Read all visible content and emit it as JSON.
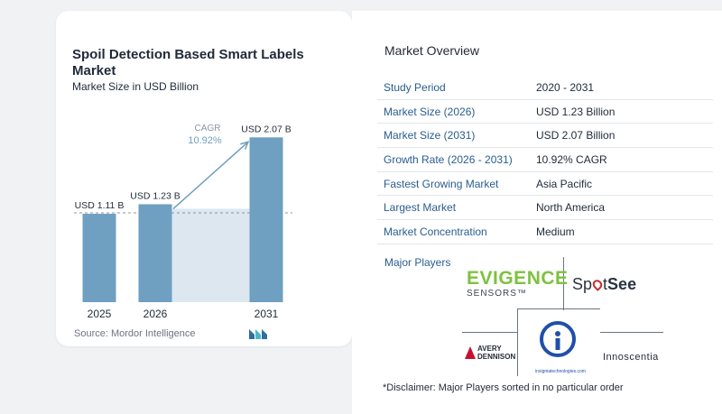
{
  "chart_data": {
    "type": "bar",
    "title": "Spoil Detection Based Smart Labels Market",
    "subtitle": "Market Size in USD Billion",
    "categories": [
      "2025",
      "2026",
      "2031"
    ],
    "values": [
      1.11,
      1.23,
      2.07
    ],
    "data_labels": [
      "USD 1.11 B",
      "USD 1.23 B",
      "USD 2.07 B"
    ],
    "ylim": [
      0,
      2.3
    ],
    "cagr_label": "CAGR",
    "cagr_value": "10.92%",
    "bar_color": "#6f9fc1",
    "shade_color": "#dde7f0",
    "arrow_color": "#6f9fc1"
  },
  "source": "Source:  Mordor Intelligence",
  "overview": {
    "title": "Market Overview",
    "rows": [
      {
        "label": "Study Period",
        "value": "2020 - 2031"
      },
      {
        "label": "Market Size (2026)",
        "value": "USD 1.23 Billion"
      },
      {
        "label": "Market Size (2031)",
        "value": "USD 2.07 Billion"
      },
      {
        "label": "Growth Rate (2026 - 2031)",
        "value": "10.92% CAGR"
      },
      {
        "label": "Fastest Growing Market",
        "value": "Asia Pacific"
      },
      {
        "label": "Largest Market",
        "value": "North America"
      },
      {
        "label": "Market Concentration",
        "value": "Medium"
      }
    ]
  },
  "players": {
    "title": "Major Players",
    "evigence_main": "EVIGENCE",
    "evigence_sub": "SENSORS™",
    "spotsee_a": "Sp",
    "spotsee_b": "t",
    "spotsee_c": "See",
    "avery_a": "AVERY",
    "avery_b": "DENNISON",
    "insignia_url": "insigniatechnologies.com",
    "innoscentia": "Innoscentia"
  },
  "disclaimer": "*Disclaimer: Major Players sorted in no particular order"
}
